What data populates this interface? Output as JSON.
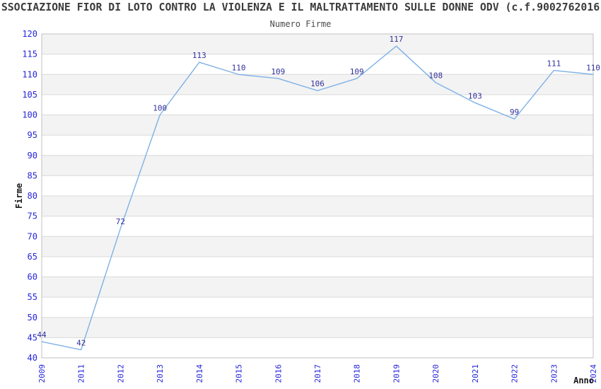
{
  "chart_data": {
    "type": "line",
    "title": "SSOCIAZIONE FIOR DI LOTO CONTRO LA VIOLENZA E IL MALTRATTAMENTO SULLE DONNE ODV (c.f.9002762016",
    "subtitle": "Numero Firme",
    "xlabel": "Anno",
    "ylabel": "Firme",
    "categories": [
      "2009",
      "2011",
      "2012",
      "2013",
      "2014",
      "2015",
      "2016",
      "2017",
      "2018",
      "2019",
      "2020",
      "2021",
      "2022",
      "2023",
      "2024"
    ],
    "values": [
      44,
      42,
      72,
      100,
      113,
      110,
      109,
      106,
      109,
      117,
      108,
      103,
      99,
      111,
      110
    ],
    "ylim": [
      40,
      120
    ],
    "ytick_step": 5,
    "grid": true,
    "legend": "none",
    "colors": {
      "line": "#7eb1e5",
      "tick_labels": "#2525dd",
      "value_labels": "#31319b",
      "band_gray": "#f3f3f3",
      "band_white": "#ffffff",
      "gridline": "#dadada",
      "plot_border": "#c0c0c0",
      "title_text": "#3c3c3c",
      "subtitle_text": "#4a4a4a",
      "axis_title_text": "#1a1a1a"
    }
  }
}
